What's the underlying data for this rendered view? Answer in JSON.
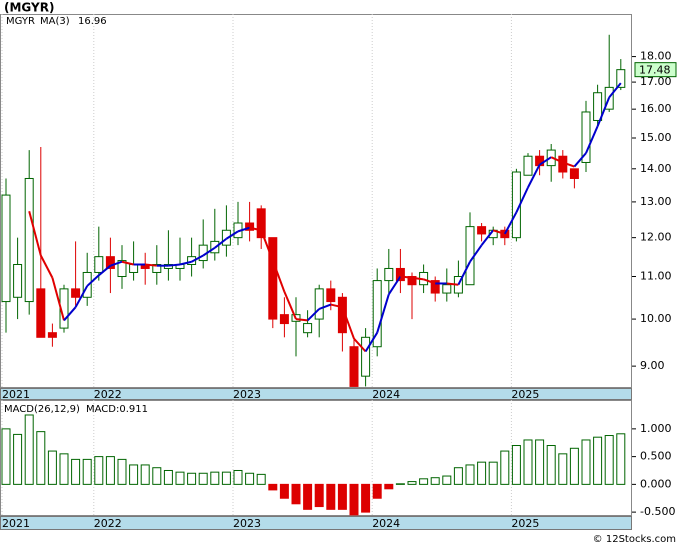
{
  "header": {
    "title": "(MGYR)"
  },
  "chart_data": [
    {
      "type": "candlestick",
      "ticker": "MGYR",
      "ticker_color": "#006400",
      "categories": [
        "2021",
        null,
        null,
        null,
        null,
        null,
        null,
        null,
        "2022",
        null,
        null,
        null,
        null,
        null,
        null,
        null,
        null,
        null,
        null,
        null,
        "2023",
        null,
        null,
        null,
        null,
        null,
        null,
        null,
        null,
        null,
        null,
        null,
        "2024",
        null,
        null,
        null,
        null,
        null,
        null,
        null,
        null,
        null,
        null,
        null,
        "2025",
        null,
        null,
        null,
        null,
        null,
        null,
        null,
        null,
        null
      ],
      "open": [
        10.4,
        10.5,
        10.4,
        10.7,
        9.7,
        9.8,
        10.7,
        10.5,
        11.1,
        11.5,
        11.0,
        11.1,
        11.3,
        11.1,
        11.2,
        11.2,
        11.3,
        11.4,
        11.6,
        11.8,
        12.0,
        12.4,
        12.8,
        12.0,
        10.1,
        9.95,
        9.7,
        10.0,
        10.7,
        10.5,
        9.4,
        8.8,
        9.4,
        10.9,
        11.2,
        11.0,
        10.8,
        10.9,
        10.6,
        10.6,
        10.8,
        12.3,
        12.0,
        12.2,
        12.0,
        13.8,
        14.4,
        14.1,
        14.4,
        14.0,
        14.2,
        15.6,
        16.0,
        16.8
      ],
      "high": [
        13.7,
        12.0,
        14.6,
        14.7,
        9.9,
        10.8,
        11.9,
        11.6,
        12.3,
        12.0,
        11.8,
        11.9,
        11.6,
        11.8,
        12.2,
        12.0,
        12.0,
        12.5,
        12.8,
        12.9,
        13.0,
        13.0,
        12.9,
        12.0,
        10.5,
        10.5,
        10.2,
        10.8,
        10.9,
        10.6,
        9.6,
        9.8,
        11.2,
        11.7,
        11.7,
        11.1,
        11.3,
        11.0,
        11.2,
        11.4,
        12.7,
        12.4,
        12.3,
        12.3,
        14.0,
        14.5,
        14.6,
        14.8,
        14.6,
        14.0,
        16.3,
        16.9,
        18.9,
        17.9
      ],
      "low": [
        9.7,
        10.0,
        10.1,
        9.6,
        9.4,
        9.7,
        10.3,
        10.3,
        10.9,
        10.6,
        10.7,
        10.9,
        10.8,
        10.8,
        10.9,
        10.9,
        11.0,
        11.2,
        11.4,
        11.5,
        11.8,
        11.9,
        11.7,
        9.8,
        9.6,
        9.2,
        9.6,
        9.6,
        10.2,
        9.3,
        8.6,
        8.6,
        9.2,
        10.6,
        10.6,
        10.0,
        10.6,
        10.4,
        10.4,
        10.5,
        10.8,
        11.9,
        11.8,
        11.8,
        11.9,
        13.8,
        13.8,
        13.6,
        13.7,
        13.4,
        13.9,
        15.4,
        15.9,
        16.7
      ],
      "close": [
        13.2,
        11.3,
        13.7,
        9.6,
        9.6,
        10.7,
        10.5,
        11.1,
        11.5,
        11.2,
        11.4,
        11.3,
        11.2,
        11.3,
        11.3,
        11.3,
        11.5,
        11.8,
        11.9,
        12.2,
        12.4,
        12.2,
        12.0,
        10.0,
        9.9,
        10.1,
        9.9,
        10.7,
        10.4,
        9.7,
        8.6,
        9.6,
        10.9,
        11.2,
        10.9,
        10.8,
        11.1,
        10.6,
        10.8,
        11.0,
        12.3,
        12.1,
        12.2,
        12.0,
        13.9,
        14.4,
        14.1,
        14.6,
        13.9,
        13.7,
        15.9,
        16.6,
        16.8,
        17.48
      ],
      "up_color": "#006400",
      "down_color": "#dd0000",
      "ma": {
        "name": "MA(3)",
        "up_color": "#0000cc",
        "down_color": "#e00000",
        "values": [
          null,
          null,
          12.73,
          11.53,
          10.97,
          9.97,
          10.27,
          10.77,
          11.03,
          11.27,
          11.37,
          11.3,
          11.3,
          11.27,
          11.27,
          11.3,
          11.37,
          11.53,
          11.73,
          11.97,
          12.17,
          12.27,
          12.2,
          11.4,
          10.63,
          10.0,
          9.97,
          10.23,
          10.33,
          10.27,
          9.57,
          9.3,
          9.7,
          10.57,
          11.0,
          10.97,
          10.93,
          10.83,
          10.83,
          10.8,
          11.37,
          11.8,
          12.2,
          12.1,
          12.7,
          13.43,
          14.13,
          14.37,
          14.2,
          14.07,
          14.5,
          15.4,
          16.43,
          16.96
        ]
      },
      "ylim": [
        8.57,
        19.8
      ],
      "log": true,
      "yticks": [
        {
          "value": 9,
          "label": "9.00"
        },
        {
          "value": 10,
          "label": "10.00"
        },
        {
          "value": 11,
          "label": "11.00"
        },
        {
          "value": 12,
          "label": "12.00"
        },
        {
          "value": 13,
          "label": "13.00"
        },
        {
          "value": 14,
          "label": "14.00"
        },
        {
          "value": 15,
          "label": "15.00"
        },
        {
          "value": 16,
          "label": "16.00"
        },
        {
          "value": 17,
          "label": "17.00"
        },
        {
          "value": 18,
          "label": "18.00"
        }
      ],
      "grid": "x"
    },
    {
      "type": "bar",
      "title": "MACD(26,12,9)",
      "macd_label": "MACD:0.911",
      "macd_color": "#0000cc",
      "categories": [
        "2021",
        null,
        null,
        null,
        null,
        null,
        null,
        null,
        "2022",
        null,
        null,
        null,
        null,
        null,
        null,
        null,
        null,
        null,
        null,
        null,
        "2023",
        null,
        null,
        null,
        null,
        null,
        null,
        null,
        null,
        null,
        null,
        null,
        "2024",
        null,
        null,
        null,
        null,
        null,
        null,
        null,
        null,
        null,
        null,
        null,
        "2025",
        null,
        null,
        null,
        null,
        null,
        null,
        null,
        null,
        null
      ],
      "values": [
        1.0,
        0.9,
        1.25,
        0.95,
        0.6,
        0.55,
        0.45,
        0.45,
        0.5,
        0.5,
        0.45,
        0.35,
        0.35,
        0.3,
        0.25,
        0.22,
        0.2,
        0.2,
        0.22,
        0.22,
        0.25,
        0.2,
        0.18,
        -0.1,
        -0.25,
        -0.35,
        -0.45,
        -0.4,
        -0.45,
        -0.45,
        -0.55,
        -0.5,
        -0.25,
        -0.08,
        0.01,
        0.05,
        0.1,
        0.12,
        0.15,
        0.3,
        0.35,
        0.4,
        0.4,
        0.6,
        0.7,
        0.8,
        0.8,
        0.7,
        0.55,
        0.65,
        0.8,
        0.85,
        0.88,
        0.911
      ],
      "up_color": "#006400",
      "down_color": "#dd0000",
      "ylim": [
        -0.57,
        1.52
      ],
      "yticks": [
        {
          "value": 1,
          "label": "1.000"
        },
        {
          "value": 0.5,
          "label": "0.500"
        },
        {
          "value": 0,
          "label": "0.000"
        },
        {
          "value": -0.5,
          "label": "-0.500"
        }
      ],
      "grid": "x"
    }
  ],
  "footer": "© 12Stocks.com"
}
